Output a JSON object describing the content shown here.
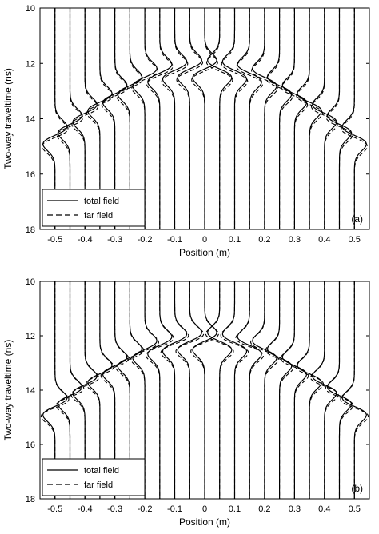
{
  "chart_data": [
    {
      "type": "line",
      "panel_label": "(a)",
      "xlabel": "Position (m)",
      "ylabel": "Two-way traveltime (ns)",
      "xlim": [
        -0.55,
        0.55
      ],
      "ylim": [
        18,
        10
      ],
      "y_inverted": true,
      "xticks": [
        "-0.5",
        "-0.4",
        "-0.3",
        "-0.2",
        "-0.1",
        "0",
        "0.1",
        "0.2",
        "0.3",
        "0.4",
        "0.5"
      ],
      "xtick_values": [
        -0.5,
        -0.4,
        -0.3,
        -0.2,
        -0.1,
        0,
        0.1,
        0.2,
        0.3,
        0.4,
        0.5
      ],
      "yticks": [
        "10",
        "12",
        "14",
        "16",
        "18"
      ],
      "ytick_values": [
        10,
        12,
        14,
        16,
        18
      ],
      "trace_positions": [
        -0.5,
        -0.45,
        -0.4,
        -0.35,
        -0.3,
        -0.25,
        -0.2,
        -0.15,
        -0.1,
        -0.05,
        0,
        0.05,
        0.1,
        0.15,
        0.2,
        0.25,
        0.3,
        0.35,
        0.4,
        0.45,
        0.5
      ],
      "wavelet_center_times_ns": [
        14.6,
        14.2,
        13.8,
        13.4,
        13.1,
        12.8,
        12.5,
        12.35,
        12.25,
        12.2,
        12.2,
        12.2,
        12.25,
        12.35,
        12.5,
        12.8,
        13.1,
        13.4,
        13.8,
        14.2,
        14.6
      ],
      "series": [
        {
          "name": "total field",
          "style": "solid"
        },
        {
          "name": "far field",
          "style": "dashed"
        }
      ],
      "legend_position": "bottom-left",
      "grid": false
    },
    {
      "type": "line",
      "panel_label": "(b)",
      "xlabel": "Position (m)",
      "ylabel": "Two-way traveltime (ns)",
      "xlim": [
        -0.55,
        0.55
      ],
      "ylim": [
        18,
        10
      ],
      "y_inverted": true,
      "xticks": [
        "-0.5",
        "-0.4",
        "-0.3",
        "-0.2",
        "-0.1",
        "0",
        "0.1",
        "0.2",
        "0.3",
        "0.4",
        "0.5"
      ],
      "xtick_values": [
        -0.5,
        -0.4,
        -0.3,
        -0.2,
        -0.1,
        0,
        0.1,
        0.2,
        0.3,
        0.4,
        0.5
      ],
      "yticks": [
        "10",
        "12",
        "14",
        "16",
        "18"
      ],
      "ytick_values": [
        10,
        12,
        14,
        16,
        18
      ],
      "trace_positions": [
        -0.5,
        -0.45,
        -0.4,
        -0.35,
        -0.3,
        -0.25,
        -0.2,
        -0.15,
        -0.1,
        -0.05,
        0,
        0.05,
        0.1,
        0.15,
        0.2,
        0.25,
        0.3,
        0.35,
        0.4,
        0.45,
        0.5
      ],
      "wavelet_center_times_ns": [
        14.6,
        14.2,
        13.8,
        13.4,
        13.1,
        12.8,
        12.5,
        12.35,
        12.25,
        12.2,
        12.2,
        12.2,
        12.25,
        12.35,
        12.5,
        12.8,
        13.1,
        13.4,
        13.8,
        14.2,
        14.6
      ],
      "series": [
        {
          "name": "total field",
          "style": "solid"
        },
        {
          "name": "far field",
          "style": "dashed"
        }
      ],
      "legend_position": "bottom-left",
      "grid": false
    }
  ]
}
